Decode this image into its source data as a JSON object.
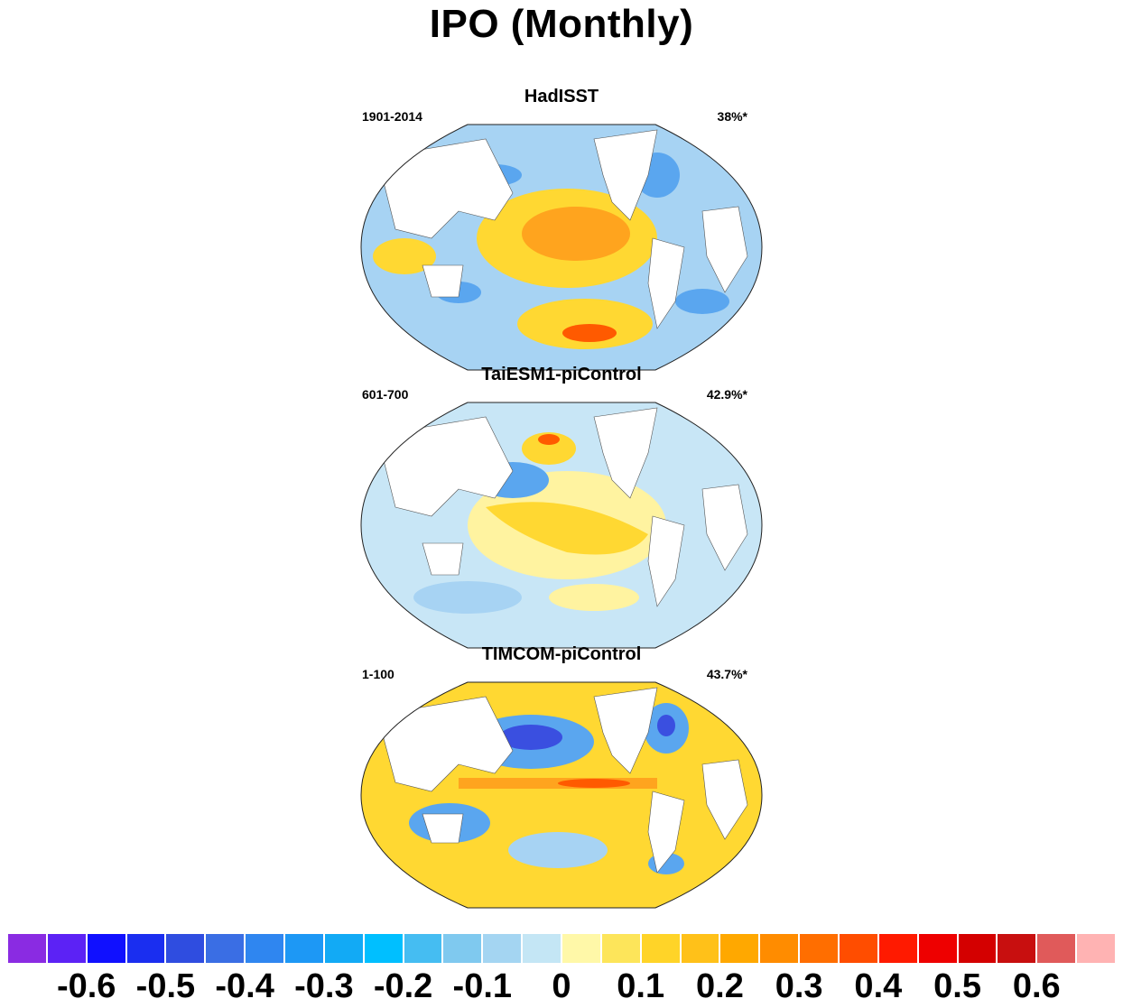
{
  "title": "IPO (Monthly)",
  "panels": [
    {
      "name": "HadISST",
      "period": "1901-2014",
      "variance": "38%*"
    },
    {
      "name": "TaiESM1-piControl",
      "period": "601-700",
      "variance": "42.9%*"
    },
    {
      "name": "TIMCOM-piControl",
      "period": "1-100",
      "variance": "43.7%*"
    }
  ],
  "colorbar": {
    "colors": [
      "#8a2be2",
      "#5c22f5",
      "#1010ff",
      "#1a2ef0",
      "#2f4de0",
      "#3a6ee4",
      "#2f86f0",
      "#1d98f5",
      "#12aaf5",
      "#00bfff",
      "#45bdf2",
      "#7fc9ef",
      "#a4d5f2",
      "#c4e6f5",
      "#fff8a8",
      "#fde55a",
      "#ffd428",
      "#ffc119",
      "#ffa800",
      "#ff8c00",
      "#ff6e00",
      "#ff4d00",
      "#ff1a00",
      "#ee0000",
      "#d40000",
      "#c80f0f",
      "#e05a5a",
      "#ffb3b3"
    ],
    "labels": [
      "-0.6",
      "-0.5",
      "-0.4",
      "-0.3",
      "-0.2",
      "-0.1",
      "0",
      "0.1",
      "0.2",
      "0.3",
      "0.4",
      "0.5",
      "0.6"
    ]
  },
  "map_palette": {
    "deep_blue": "#3a4fe0",
    "blue": "#5aa6ef",
    "light_blue": "#a7d3f3",
    "pale_blue": "#c8e6f6",
    "pale_yellow": "#fff3a0",
    "yellow": "#ffd832",
    "orange": "#ffa41e",
    "red": "#ff5a00",
    "land": "#ffffff",
    "coast": "#555555"
  }
}
